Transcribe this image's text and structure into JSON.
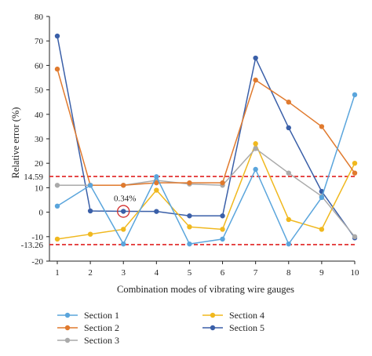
{
  "chart_data": {
    "type": "line",
    "xlabel": "Combination modes of vibrating wire gauges",
    "ylabel": "Relative error (%)",
    "x": [
      1,
      2,
      3,
      4,
      5,
      6,
      7,
      8,
      9,
      10
    ],
    "ylim": [
      -20,
      80
    ],
    "yticks": [
      -20,
      -10,
      0,
      10,
      20,
      30,
      40,
      50,
      60,
      70,
      80
    ],
    "reference_lines": [
      {
        "value": 14.59,
        "label": "14.59",
        "color": "#e02020"
      },
      {
        "value": -13.26,
        "label": "-13.26",
        "color": "#e02020"
      }
    ],
    "annotation": {
      "text": "0.34%",
      "x": 3,
      "y": 0.34,
      "color": "#d32f2f"
    },
    "series": [
      {
        "name": "Section 1",
        "color": "#5aa5dc",
        "values": [
          2.5,
          11,
          -13,
          14.5,
          -13,
          -11,
          17.5,
          -13,
          6,
          48
        ]
      },
      {
        "name": "Section 2",
        "color": "#e07a2e",
        "values": [
          58.5,
          11,
          11,
          12,
          12,
          12,
          54,
          45,
          35,
          16
        ]
      },
      {
        "name": "Section 3",
        "color": "#aaaaaa",
        "values": [
          11,
          11,
          11,
          13,
          11.5,
          11,
          26,
          16,
          6.5,
          -10
        ]
      },
      {
        "name": "Section 4",
        "color": "#f0b81e",
        "values": [
          -11,
          -9,
          -7,
          9,
          -6,
          -7,
          28,
          -3,
          -7,
          20
        ]
      },
      {
        "name": "Section 5",
        "color": "#3a5fa8",
        "values": [
          72,
          0.5,
          0.34,
          0.3,
          -1.5,
          -1.5,
          63,
          34.5,
          8.5,
          -10.5
        ]
      }
    ],
    "legend_position": "bottom"
  }
}
